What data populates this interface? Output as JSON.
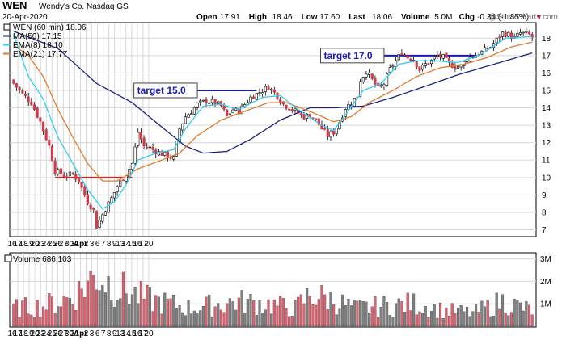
{
  "header": {
    "symbol": "WEN",
    "company": "Wendy's Co.  Nasdaq GS",
    "date": "20-Apr-2020",
    "stats": [
      {
        "label": "Open",
        "value": "17.91"
      },
      {
        "label": "High",
        "value": "18.46"
      },
      {
        "label": "Low",
        "value": "17.60"
      },
      {
        "label": "Last",
        "value": "18.06"
      },
      {
        "label": "Volume",
        "value": "5.0M"
      },
      {
        "label": "Chg",
        "value": "-0.34 (-1.85%)"
      }
    ],
    "watermark": "@StockCharts.com",
    "down_marker": "▼"
  },
  "legend": [
    {
      "label": "WEN (60 min) 18.06",
      "color": "#000000",
      "kind": "candle"
    },
    {
      "label": "MA(50) 17.15",
      "color": "#1a237e",
      "kind": "line"
    },
    {
      "label": "EMA(8) 18.10",
      "color": "#33ccee",
      "kind": "line"
    },
    {
      "label": "EMA(21) 17.77",
      "color": "#e07a2c",
      "kind": "line"
    }
  ],
  "annotations": [
    {
      "label": "target 15.0",
      "level": 15.0
    },
    {
      "label": "target 17.0",
      "level": 17.0
    }
  ],
  "volume_label": "Volume 686,103",
  "colors": {
    "up": "#ffffff",
    "down": "#d33a4a",
    "candle_outline": "#000000",
    "volume_up": "#808080",
    "volume_down": "#e06070",
    "grid": "#d8d8d8",
    "target_line": "#1a1ab8",
    "support_line": "#d42020"
  },
  "chart_data": {
    "type": "candlestick",
    "price_axis": {
      "ticks": [
        7,
        8,
        9,
        10,
        11,
        12,
        13,
        14,
        15,
        16,
        17,
        18
      ],
      "ylim": [
        6.7,
        18.8
      ]
    },
    "volume_axis": {
      "ticks": [
        "1M",
        "2M",
        "3M"
      ],
      "ylim": [
        0,
        3200000
      ]
    },
    "x_ticks": [
      "16",
      "17",
      "18",
      "19",
      "20",
      "23",
      "24",
      "25",
      "26",
      "27",
      "30",
      "31",
      "Apr",
      "2",
      "3",
      "6",
      "7",
      "8",
      "9",
      "13",
      "14",
      "15",
      "16",
      "17",
      "20"
    ],
    "x_tick_bold": [
      "Apr"
    ],
    "bars_per_day": 7,
    "close_path": [
      [
        0,
        15.4
      ],
      [
        3,
        14.8
      ],
      [
        6,
        14.3
      ],
      [
        9,
        13.2
      ],
      [
        12,
        11.8
      ],
      [
        14,
        10.4
      ],
      [
        17,
        10.1
      ],
      [
        20,
        10.2
      ],
      [
        22,
        9.8
      ],
      [
        25,
        8.6
      ],
      [
        27,
        8.1
      ],
      [
        28,
        7.2
      ],
      [
        31,
        8.2
      ],
      [
        33,
        8.8
      ],
      [
        35,
        9.5
      ],
      [
        38,
        10.2
      ],
      [
        40,
        10.8
      ],
      [
        42,
        12.6
      ],
      [
        44,
        11.8
      ],
      [
        46,
        11.7
      ],
      [
        48,
        11.5
      ],
      [
        51,
        11.3
      ],
      [
        54,
        11.1
      ],
      [
        56,
        12.8
      ],
      [
        58,
        13.5
      ],
      [
        60,
        13.8
      ],
      [
        62,
        14.2
      ],
      [
        65,
        14.4
      ],
      [
        68,
        14.3
      ],
      [
        70,
        14.1
      ],
      [
        72,
        13.5
      ],
      [
        74,
        13.9
      ],
      [
        76,
        13.8
      ],
      [
        78,
        14.2
      ],
      [
        80,
        14.6
      ],
      [
        83,
        14.9
      ],
      [
        86,
        15.2
      ],
      [
        89,
        14.7
      ],
      [
        91,
        14.2
      ],
      [
        93,
        14.0
      ],
      [
        96,
        13.7
      ],
      [
        98,
        13.5
      ],
      [
        100,
        13.6
      ],
      [
        102,
        13.3
      ],
      [
        104,
        12.8
      ],
      [
        106,
        12.4
      ],
      [
        108,
        12.6
      ],
      [
        110,
        13.2
      ],
      [
        112,
        14.0
      ],
      [
        114,
        14.3
      ],
      [
        116,
        14.7
      ],
      [
        117,
        15.6
      ],
      [
        119,
        16.1
      ],
      [
        121,
        15.6
      ],
      [
        123,
        15.1
      ],
      [
        125,
        15.4
      ],
      [
        127,
        16.2
      ],
      [
        129,
        16.7
      ],
      [
        131,
        17.2
      ],
      [
        133,
        16.9
      ],
      [
        135,
        16.8
      ],
      [
        137,
        16.2
      ],
      [
        139,
        16.5
      ],
      [
        141,
        16.7
      ],
      [
        143,
        17.0
      ],
      [
        145,
        16.9
      ],
      [
        147,
        16.5
      ],
      [
        149,
        16.4
      ],
      [
        151,
        16.4
      ],
      [
        153,
        16.8
      ],
      [
        155,
        17.0
      ],
      [
        157,
        17.1
      ],
      [
        159,
        17.3
      ],
      [
        161,
        17.5
      ],
      [
        163,
        17.9
      ],
      [
        165,
        18.3
      ],
      [
        167,
        18.2
      ],
      [
        169,
        18.0
      ],
      [
        171,
        18.3
      ],
      [
        174,
        18.2
      ],
      [
        175,
        18.06
      ]
    ],
    "volume_path": [
      [
        0,
        800000
      ],
      [
        10,
        900000
      ],
      [
        20,
        1300000
      ],
      [
        28,
        2300000
      ],
      [
        35,
        1700000
      ],
      [
        45,
        1200000
      ],
      [
        60,
        800000
      ],
      [
        75,
        1100000
      ],
      [
        85,
        1000000
      ],
      [
        95,
        800000
      ],
      [
        100,
        1400000
      ],
      [
        107,
        1200000
      ],
      [
        115,
        800000
      ],
      [
        125,
        900000
      ],
      [
        135,
        1000000
      ],
      [
        145,
        700000
      ],
      [
        155,
        600000
      ],
      [
        165,
        1100000
      ],
      [
        175,
        700000
      ]
    ],
    "ma50_path": [
      [
        0,
        18.4
      ],
      [
        15,
        17.4
      ],
      [
        28,
        15.4
      ],
      [
        40,
        14.3
      ],
      [
        50,
        12.9
      ],
      [
        58,
        11.8
      ],
      [
        64,
        11.4
      ],
      [
        72,
        11.5
      ],
      [
        80,
        12.2
      ],
      [
        90,
        13.3
      ],
      [
        100,
        14.0
      ],
      [
        108,
        14.0
      ],
      [
        118,
        14.1
      ],
      [
        128,
        14.6
      ],
      [
        140,
        15.3
      ],
      [
        150,
        15.9
      ],
      [
        160,
        16.4
      ],
      [
        170,
        16.9
      ],
      [
        175,
        17.15
      ]
    ],
    "ema8_path": [
      [
        0,
        18.2
      ],
      [
        5,
        15.8
      ],
      [
        10,
        14.5
      ],
      [
        15,
        12.3
      ],
      [
        20,
        10.8
      ],
      [
        25,
        9.3
      ],
      [
        30,
        8.2
      ],
      [
        34,
        8.6
      ],
      [
        38,
        9.6
      ],
      [
        42,
        11.0
      ],
      [
        48,
        11.4
      ],
      [
        54,
        11.6
      ],
      [
        58,
        12.8
      ],
      [
        64,
        14.1
      ],
      [
        70,
        14.2
      ],
      [
        76,
        13.9
      ],
      [
        84,
        14.6
      ],
      [
        90,
        14.7
      ],
      [
        96,
        13.9
      ],
      [
        104,
        13.0
      ],
      [
        108,
        12.7
      ],
      [
        112,
        13.6
      ],
      [
        118,
        15.0
      ],
      [
        124,
        15.4
      ],
      [
        130,
        16.5
      ],
      [
        136,
        16.7
      ],
      [
        142,
        16.7
      ],
      [
        150,
        16.6
      ],
      [
        158,
        17.1
      ],
      [
        166,
        18.0
      ],
      [
        175,
        18.1
      ]
    ],
    "ema21_path": [
      [
        0,
        17.6
      ],
      [
        5,
        17.0
      ],
      [
        10,
        15.8
      ],
      [
        15,
        13.9
      ],
      [
        20,
        12.3
      ],
      [
        25,
        10.8
      ],
      [
        30,
        9.8
      ],
      [
        35,
        9.8
      ],
      [
        42,
        10.5
      ],
      [
        50,
        11.0
      ],
      [
        56,
        11.4
      ],
      [
        62,
        12.4
      ],
      [
        70,
        13.3
      ],
      [
        78,
        13.8
      ],
      [
        86,
        14.3
      ],
      [
        92,
        14.3
      ],
      [
        100,
        13.8
      ],
      [
        108,
        13.2
      ],
      [
        114,
        13.5
      ],
      [
        120,
        14.3
      ],
      [
        128,
        15.0
      ],
      [
        136,
        15.8
      ],
      [
        144,
        16.3
      ],
      [
        152,
        16.5
      ],
      [
        160,
        16.9
      ],
      [
        168,
        17.5
      ],
      [
        175,
        17.77
      ]
    ],
    "support": {
      "level": 10.0,
      "from_bar": 14,
      "to_bar": 40
    },
    "target_15": {
      "level": 15.0,
      "from_bar": 62,
      "to_bar": 82
    },
    "target_17": {
      "level": 17.0,
      "from_bar": 125,
      "to_bar": 156
    }
  }
}
